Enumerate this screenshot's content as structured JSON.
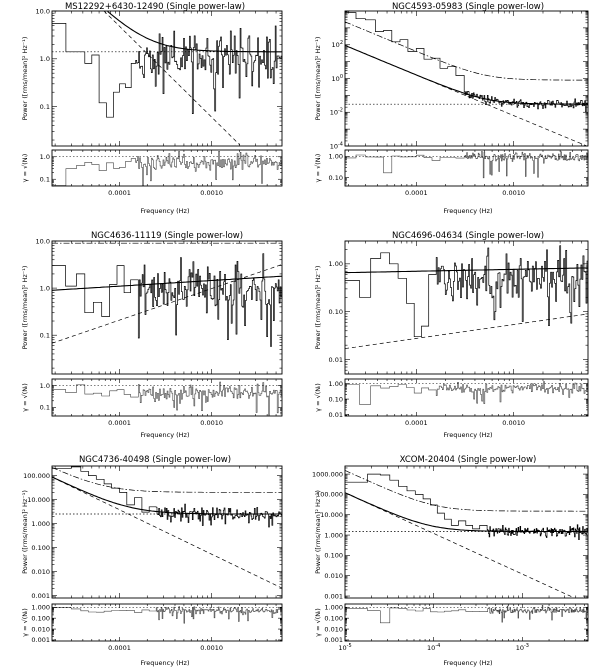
{
  "figure_colors": {
    "background": "#ffffff",
    "ink": "#000000"
  },
  "chart_data": [
    {
      "type": "line",
      "title": "MS12292+6430-12490 (Single power-law)",
      "xlabel": "Frequency (Hz)",
      "ylabel": "Power ([rms/mean]² Hz⁻¹)",
      "ratio_ylabel": "γ = √(Nᵢ)",
      "x_log": true,
      "xlim": [
        1.85e-05,
        0.0058
      ],
      "x_ticks": [
        {
          "value": 0.0001,
          "label": "0.0001"
        },
        {
          "value": 0.001,
          "label": "0.0010"
        }
      ],
      "ylim": [
        0.015,
        10
      ],
      "y_ticks": [
        {
          "value": 0.1,
          "label": "0.1"
        },
        {
          "value": 1,
          "label": "1.0"
        },
        {
          "value": 10,
          "label": "10.0"
        }
      ],
      "ratio_ylim": [
        0.05,
        2
      ],
      "ratio_ticks": [
        {
          "value": 0.1,
          "label": "0.1"
        },
        {
          "value": 1,
          "label": "1.0"
        }
      ],
      "series": [
        {
          "style": "histogram",
          "seed": 11,
          "x": [
            1.85e-05,
            2.62e-05,
            3.4e-05,
            4.2e-05,
            5e-05,
            6e-05,
            7.2e-05,
            8.6e-05,
            0.0001,
            0.000116,
            0.000134
          ],
          "values": [
            5.5,
            1.4,
            1.4,
            0.8,
            1.2,
            0.12,
            0.06,
            0.2,
            0.3,
            0.25,
            0.8
          ],
          "noise": {
            "start": 0.00015,
            "end": 0.0058,
            "level": 1.1,
            "sigma": 1.25,
            "min": 0.03
          }
        },
        {
          "style": "model",
          "formula": "powerlaw+const",
          "norm": 1.2e-07,
          "index": 1.9,
          "const": 1.4
        },
        {
          "style": "powerlaw",
          "dash": "4,3",
          "norm": 1.2e-07,
          "index": 1.9
        },
        {
          "style": "constant",
          "dash": "1.5,2",
          "value": 1.4
        }
      ],
      "ratio": {
        "seed": 12,
        "level": 0.55,
        "sigma": 0.9
      }
    },
    {
      "type": "line",
      "title": "NGC4593-05983 (Single power-low)",
      "xlabel": "Frequency (Hz)",
      "ylabel": "Power ([rms/mean]² Hz⁻¹)",
      "ratio_ylabel": "γ = √(Nᵢ)",
      "x_log": true,
      "xlim": [
        1.85e-05,
        0.0058
      ],
      "x_ticks": [
        {
          "value": 0.0001,
          "label": "0.0001"
        },
        {
          "value": 0.001,
          "label": "0.0010"
        }
      ],
      "ylim": [
        0.0001,
        10000
      ],
      "y_ticks": [
        {
          "value": 0.0001,
          "label": "10",
          "sup": "-4"
        },
        {
          "value": 0.01,
          "label": "10",
          "sup": "-2"
        },
        {
          "value": 1,
          "label": "10",
          "sup": "0"
        },
        {
          "value": 100,
          "label": "10",
          "sup": "2"
        }
      ],
      "ratio_ylim": [
        0.04,
        2
      ],
      "ratio_ticks": [
        {
          "value": 0.1,
          "label": "0.10"
        },
        {
          "value": 1,
          "label": "1.00"
        }
      ],
      "series": [
        {
          "style": "histogram",
          "seed": 21,
          "x": [
            1.85e-05,
            2.4e-05,
            3e-05,
            3.8e-05,
            4.6e-05,
            5.6e-05,
            6.8e-05,
            8.2e-05,
            0.0001,
            0.00012,
            0.000145,
            0.000175,
            0.00021,
            0.000255
          ],
          "values": [
            8000,
            3500,
            3000,
            600,
            700,
            150,
            200,
            40,
            60,
            14,
            16,
            4,
            5,
            1.5
          ],
          "noise": {
            "start": 0.00031,
            "end": 0.0058,
            "level": "model",
            "sigma": 0.55,
            "min": 0.01
          }
        },
        {
          "style": "model",
          "formula": "broken",
          "norm": 4e-10,
          "index": 2.4,
          "const": 0.03
        },
        {
          "style": "powerlaw",
          "dash": "4,3",
          "norm": 4e-10,
          "index": 2.4
        },
        {
          "style": "constant",
          "dash": "1.5,2",
          "value": 0.03
        },
        {
          "style": "envelope",
          "dash": "6,2,1.5,2",
          "formula": "envelope",
          "norm": 1e-08,
          "index": 2.4,
          "const": 0.8
        }
      ],
      "ratio": {
        "seed": 22,
        "level": 0.9,
        "sigma": 0.5
      }
    },
    {
      "type": "line",
      "title": "NGC4636-11119 (Single power-low)",
      "xlabel": "Frequency (Hz)",
      "ylabel": "Power ([rms/mean]² Hz⁻¹)",
      "ratio_ylabel": "γ = √(Nᵢ)",
      "x_log": true,
      "xlim": [
        1.85e-05,
        0.0058
      ],
      "x_ticks": [
        {
          "value": 0.0001,
          "label": "0.0001"
        },
        {
          "value": 0.001,
          "label": "0.0010"
        }
      ],
      "ylim": [
        0.015,
        10
      ],
      "y_ticks": [
        {
          "value": 0.1,
          "label": "0.1"
        },
        {
          "value": 1,
          "label": "1.0"
        },
        {
          "value": 10,
          "label": "10.0"
        }
      ],
      "ratio_ylim": [
        0.04,
        2
      ],
      "ratio_ticks": [
        {
          "value": 0.1,
          "label": "0.1"
        },
        {
          "value": 1,
          "label": "1.0"
        }
      ],
      "series": [
        {
          "style": "histogram",
          "seed": 31,
          "x": [
            1.85e-05,
            2.6e-05,
            3.4e-05,
            4.2e-05,
            5.2e-05,
            6.4e-05,
            7.8e-05,
            9.4e-05,
            0.000112,
            0.000132
          ],
          "values": [
            3.0,
            1.1,
            2.0,
            0.3,
            0.5,
            0.25,
            1.2,
            3.0,
            0.8,
            1.5
          ],
          "noise": {
            "start": 0.00016,
            "end": 0.0058,
            "level": 0.9,
            "sigma": 1.3,
            "min": 0.02
          }
        },
        {
          "style": "model",
          "formula": "rising",
          "norm": 1.1,
          "index": -0.12,
          "const": 0
        },
        {
          "style": "powerlaw",
          "dash": "4,3",
          "norm": 100,
          "index": -0.67
        },
        {
          "style": "envelope",
          "dash": "6,2,1.5,2",
          "formula": "flat",
          "value": 9
        }
      ],
      "ratio": {
        "seed": 32,
        "level": 0.5,
        "sigma": 0.9
      }
    },
    {
      "type": "line",
      "title": "NGC4696-04634 (Single power-low)",
      "xlabel": "Frequency (Hz)",
      "ylabel": "Power ([rms/mean]² Hz⁻¹)",
      "ratio_ylabel": "γ = √(Nᵢ)",
      "x_log": true,
      "xlim": [
        1.85e-05,
        0.0058
      ],
      "x_ticks": [
        {
          "value": 0.0001,
          "label": "0.0001"
        },
        {
          "value": 0.001,
          "label": "0.0010"
        }
      ],
      "ylim": [
        0.005,
        3
      ],
      "y_ticks": [
        {
          "value": 0.01,
          "label": "0.01"
        },
        {
          "value": 0.1,
          "label": "0.10"
        },
        {
          "value": 1,
          "label": "1.00"
        }
      ],
      "ratio_ylim": [
        0.008,
        2
      ],
      "ratio_ticks": [
        {
          "value": 0.01,
          "label": "0.01"
        },
        {
          "value": 0.1,
          "label": "0.10"
        },
        {
          "value": 1,
          "label": "1.00"
        }
      ],
      "series": [
        {
          "style": "histogram",
          "seed": 41,
          "x": [
            1.85e-05,
            2.6e-05,
            3.4e-05,
            4.3e-05,
            5.3e-05,
            6.5e-05,
            7.9e-05,
            9.5e-05,
            0.000113,
            0.000134
          ],
          "values": [
            0.45,
            0.2,
            1.3,
            1.7,
            1.0,
            0.5,
            0.15,
            0.03,
            0.05,
            0.6
          ],
          "noise": {
            "start": 0.00016,
            "end": 0.0058,
            "level": 0.5,
            "sigma": 1.2,
            "min": 0.006
          }
        },
        {
          "style": "model",
          "formula": "rising",
          "norm": 0.7,
          "index": -0.04,
          "const": 0
        },
        {
          "style": "powerlaw",
          "dash": "4,3",
          "norm": 0.4,
          "index": -0.29
        }
      ],
      "ratio": {
        "seed": 42,
        "level": 0.5,
        "sigma": 0.9
      }
    },
    {
      "type": "line",
      "title": "NGC4736-40498 (Single power-low)",
      "xlabel": "Frequency (Hz)",
      "ylabel": "Power ([rms/mean]² Hz⁻¹)",
      "ratio_ylabel": "γ = √(Nᵢ)",
      "x_log": true,
      "xlim": [
        1.85e-05,
        0.0058
      ],
      "x_ticks": [
        {
          "value": 0.0001,
          "label": "0.0001"
        },
        {
          "value": 0.001,
          "label": "0.0010"
        }
      ],
      "ylim": [
        0.0008,
        250
      ],
      "y_ticks": [
        {
          "value": 0.001,
          "label": "0.001"
        },
        {
          "value": 0.01,
          "label": "0.010"
        },
        {
          "value": 0.1,
          "label": "0.100"
        },
        {
          "value": 1,
          "label": "1.000"
        },
        {
          "value": 10,
          "label": "10.000"
        },
        {
          "value": 100,
          "label": "100.000"
        }
      ],
      "ratio_ylim": [
        0.0008,
        2
      ],
      "ratio_ticks": [
        {
          "value": 0.001,
          "label": "0.001"
        },
        {
          "value": 0.01,
          "label": "0.010"
        },
        {
          "value": 0.1,
          "label": "0.100"
        },
        {
          "value": 1,
          "label": "1.000"
        }
      ],
      "series": [
        {
          "style": "histogram",
          "seed": 51,
          "x": [
            1.85e-05,
            3e-05,
            3.8e-05,
            4.6e-05,
            5.6e-05,
            6.8e-05,
            8.2e-05,
            0.0001,
            0.00012,
            0.000145,
            0.000175,
            0.00021
          ],
          "values": [
            200,
            230,
            150,
            100,
            70,
            45,
            30,
            20,
            6,
            12,
            3,
            5
          ],
          "noise": {
            "start": 0.00025,
            "end": 0.0058,
            "level": "model",
            "sigma": 0.6,
            "min": 0.005
          }
        },
        {
          "style": "model",
          "formula": "broken",
          "norm": 1.5e-07,
          "index": 1.85,
          "const": 2.5
        },
        {
          "style": "powerlaw",
          "dash": "4,3",
          "norm": 1.5e-07,
          "index": 1.85
        },
        {
          "style": "constant",
          "dash": "1.5,2",
          "value": 2.5
        },
        {
          "style": "envelope",
          "dash": "6,2,1.5,2",
          "formula": "envelope",
          "norm": 3.5e-07,
          "index": 1.85,
          "const": 20
        }
      ],
      "ratio": {
        "seed": 52,
        "level": 0.5,
        "sigma": 0.8
      }
    },
    {
      "type": "line",
      "title": "XCOM-20404 (Single power-low)",
      "xlabel": "Frequency (Hz)",
      "ylabel": "Power ([rms/mean]² Hz⁻¹)",
      "ratio_ylabel": "γ = √(Nᵢ)",
      "x_log": true,
      "xlim": [
        1e-05,
        0.0055
      ],
      "x_ticks": [
        {
          "value": 1e-05,
          "label": "10",
          "sup": "-5"
        },
        {
          "value": 0.0001,
          "label": "10",
          "sup": "-4"
        },
        {
          "value": 0.001,
          "label": "10",
          "sup": "-3"
        }
      ],
      "ylim": [
        0.0008,
        2500
      ],
      "y_ticks": [
        {
          "value": 0.001,
          "label": "0.001"
        },
        {
          "value": 0.01,
          "label": "0.010"
        },
        {
          "value": 0.1,
          "label": "0.100"
        },
        {
          "value": 1,
          "label": "1.000"
        },
        {
          "value": 10,
          "label": "10.000"
        },
        {
          "value": 100,
          "label": "100.000"
        },
        {
          "value": 1000,
          "label": "1000.000"
        }
      ],
      "ratio_ylim": [
        0.0008,
        2
      ],
      "ratio_ticks": [
        {
          "value": 0.001,
          "label": "0.001"
        },
        {
          "value": 0.01,
          "label": "0.010"
        },
        {
          "value": 0.1,
          "label": "0.100"
        },
        {
          "value": 1,
          "label": "1.000"
        }
      ],
      "series": [
        {
          "style": "histogram",
          "seed": 61,
          "x": [
            1e-05,
            1.8e-05,
            2.5e-05,
            3.2e-05,
            4e-05,
            5e-05,
            6.2e-05,
            7.6e-05,
            9.2e-05,
            0.00011,
            0.000132,
            0.000158,
            0.00019,
            0.00023,
            0.000275,
            0.00033
          ],
          "values": [
            400,
            1000,
            900,
            500,
            250,
            150,
            100,
            60,
            30,
            12,
            6,
            3,
            5,
            3,
            2,
            3
          ],
          "noise": {
            "start": 0.0004,
            "end": 0.0055,
            "level": "model",
            "sigma": 0.6,
            "min": 0.02
          }
        },
        {
          "style": "model",
          "formula": "broken",
          "norm": 1.2e-08,
          "index": 2.0,
          "const": 1.5
        },
        {
          "style": "powerlaw",
          "dash": "4,3",
          "norm": 1.2e-08,
          "index": 2.0
        },
        {
          "style": "constant",
          "dash": "1.5,2",
          "value": 1.5
        },
        {
          "style": "envelope",
          "dash": "6,2,1.5,2",
          "formula": "envelope",
          "norm": 1.5e-07,
          "index": 2.0,
          "const": 15
        }
      ],
      "ratio": {
        "seed": 62,
        "level": 0.5,
        "sigma": 0.7
      }
    }
  ]
}
